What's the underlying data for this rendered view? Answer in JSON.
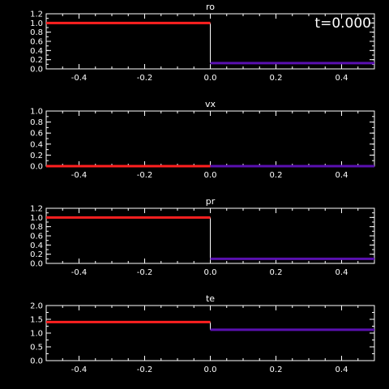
{
  "time_label": "t=0.000",
  "colors": {
    "background": "#000000",
    "axes": "#ffffff",
    "left_state": "#ff2020",
    "right_state": "#5a10b0",
    "jump": "#ffffff"
  },
  "chart_data": [
    {
      "type": "line",
      "title": "ro",
      "xlim": [
        -0.5,
        0.5
      ],
      "ylim": [
        0,
        1.2
      ],
      "xticks": [
        -0.4,
        -0.2,
        0.0,
        0.2,
        0.4
      ],
      "xtick_labels": [
        "-0.4",
        "-0.2",
        "0.0",
        "0.2",
        "0.4"
      ],
      "yticks": [
        0,
        0.2,
        0.4,
        0.6,
        0.8,
        1.0,
        1.2
      ],
      "ytick_labels": [
        "0.0",
        "0.2",
        "0.4",
        "0.6",
        "0.8",
        "1.0",
        "1.2"
      ],
      "series": [
        {
          "x": [
            -0.5,
            0.0
          ],
          "y": [
            1.0,
            1.0
          ],
          "color": "left"
        },
        {
          "x": [
            0.0,
            0.5
          ],
          "y": [
            0.125,
            0.125
          ],
          "color": "right"
        }
      ],
      "jump": {
        "x": 0.0,
        "y": [
          1.0,
          0.125
        ]
      }
    },
    {
      "type": "line",
      "title": "vx",
      "xlim": [
        -0.5,
        0.5
      ],
      "ylim": [
        0,
        1.0
      ],
      "xticks": [
        -0.4,
        -0.2,
        0.0,
        0.2,
        0.4
      ],
      "xtick_labels": [
        "-0.4",
        "-0.2",
        "0.0",
        "0.2",
        "0.4"
      ],
      "yticks": [
        0,
        0.2,
        0.4,
        0.6,
        0.8,
        1.0
      ],
      "ytick_labels": [
        "0.0",
        "0.2",
        "0.4",
        "0.6",
        "0.8",
        "1.0"
      ],
      "series": [
        {
          "x": [
            -0.5,
            0.0
          ],
          "y": [
            0.0,
            0.0
          ],
          "color": "left"
        },
        {
          "x": [
            0.0,
            0.5
          ],
          "y": [
            0.0,
            0.0
          ],
          "color": "right"
        }
      ],
      "jump": null
    },
    {
      "type": "line",
      "title": "pr",
      "xlim": [
        -0.5,
        0.5
      ],
      "ylim": [
        0,
        1.2
      ],
      "xticks": [
        -0.4,
        -0.2,
        0.0,
        0.2,
        0.4
      ],
      "xtick_labels": [
        "-0.4",
        "-0.2",
        "0.0",
        "0.2",
        "0.4"
      ],
      "yticks": [
        0,
        0.2,
        0.4,
        0.6,
        0.8,
        1.0,
        1.2
      ],
      "ytick_labels": [
        "0.0",
        "0.2",
        "0.4",
        "0.6",
        "0.8",
        "1.0",
        "1.2"
      ],
      "series": [
        {
          "x": [
            -0.5,
            0.0
          ],
          "y": [
            1.0,
            1.0
          ],
          "color": "left"
        },
        {
          "x": [
            0.0,
            0.5
          ],
          "y": [
            0.1,
            0.1
          ],
          "color": "right"
        }
      ],
      "jump": {
        "x": 0.0,
        "y": [
          1.0,
          0.1
        ]
      }
    },
    {
      "type": "line",
      "title": "te",
      "xlim": [
        -0.5,
        0.5
      ],
      "ylim": [
        0,
        2.0
      ],
      "xticks": [
        -0.4,
        -0.2,
        0.0,
        0.2,
        0.4
      ],
      "xtick_labels": [
        "-0.4",
        "-0.2",
        "0.0",
        "0.2",
        "0.4"
      ],
      "yticks": [
        0,
        0.5,
        1.0,
        1.5,
        2.0
      ],
      "ytick_labels": [
        "0.0",
        "0.5",
        "1.0",
        "1.5",
        "2.0"
      ],
      "series": [
        {
          "x": [
            -0.5,
            0.0
          ],
          "y": [
            1.4,
            1.4
          ],
          "color": "left"
        },
        {
          "x": [
            0.0,
            0.5
          ],
          "y": [
            1.12,
            1.12
          ],
          "color": "right"
        }
      ],
      "jump": {
        "x": 0.0,
        "y": [
          1.4,
          1.12
        ]
      }
    }
  ]
}
